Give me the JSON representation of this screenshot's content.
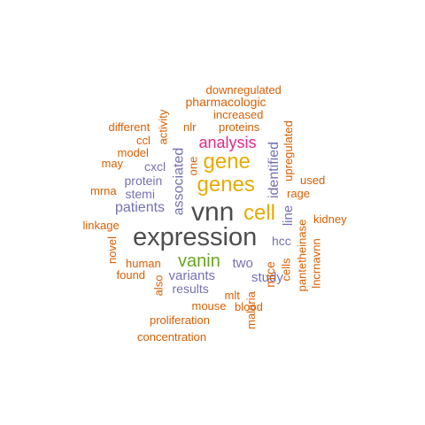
{
  "colors": {
    "orange": "#d95f02",
    "purple": "#7570b3",
    "magenta": "#e7298a",
    "green": "#66a61e",
    "gold": "#e6ab02",
    "dark": "#4d4d4d"
  },
  "words": [
    {
      "text": "expression",
      "color": "dark",
      "rotated": false
    },
    {
      "text": "vnn",
      "color": "dark",
      "rotated": false
    },
    {
      "text": "genes",
      "color": "gold",
      "rotated": false
    },
    {
      "text": "gene",
      "color": "gold",
      "rotated": false
    },
    {
      "text": "cell",
      "color": "gold",
      "rotated": false
    },
    {
      "text": "vanin",
      "color": "green",
      "rotated": false
    },
    {
      "text": "analysis",
      "color": "magenta",
      "rotated": false
    },
    {
      "text": "patients",
      "color": "purple",
      "rotated": false
    },
    {
      "text": "associated",
      "color": "purple",
      "rotated": true
    },
    {
      "text": "identified",
      "color": "purple",
      "rotated": true
    },
    {
      "text": "variants",
      "color": "purple",
      "rotated": false
    },
    {
      "text": "two",
      "color": "purple",
      "rotated": false
    },
    {
      "text": "study",
      "color": "purple",
      "rotated": false
    },
    {
      "text": "results",
      "color": "purple",
      "rotated": false
    },
    {
      "text": "protein",
      "color": "purple",
      "rotated": false
    },
    {
      "text": "stemi",
      "color": "purple",
      "rotated": false
    },
    {
      "text": "cxcl",
      "color": "purple",
      "rotated": false
    },
    {
      "text": "line",
      "color": "purple",
      "rotated": true
    },
    {
      "text": "hcc",
      "color": "purple",
      "rotated": false
    },
    {
      "text": "downregulated",
      "color": "orange",
      "rotated": false
    },
    {
      "text": "pharmacologic",
      "color": "orange",
      "rotated": false
    },
    {
      "text": "increased",
      "color": "orange",
      "rotated": false
    },
    {
      "text": "proteins",
      "color": "orange",
      "rotated": false
    },
    {
      "text": "different",
      "color": "orange",
      "rotated": false
    },
    {
      "text": "activity",
      "color": "orange",
      "rotated": true
    },
    {
      "text": "nlr",
      "color": "orange",
      "rotated": false
    },
    {
      "text": "ccl",
      "color": "orange",
      "rotated": false
    },
    {
      "text": "model",
      "color": "orange",
      "rotated": false
    },
    {
      "text": "may",
      "color": "orange",
      "rotated": false
    },
    {
      "text": "one",
      "color": "orange",
      "rotated": true
    },
    {
      "text": "upregulated",
      "color": "orange",
      "rotated": true
    },
    {
      "text": "used",
      "color": "orange",
      "rotated": false
    },
    {
      "text": "rage",
      "color": "orange",
      "rotated": false
    },
    {
      "text": "mrna",
      "color": "orange",
      "rotated": false
    },
    {
      "text": "kidney",
      "color": "orange",
      "rotated": false
    },
    {
      "text": "linkage",
      "color": "orange",
      "rotated": false
    },
    {
      "text": "novel",
      "color": "orange",
      "rotated": true
    },
    {
      "text": "human",
      "color": "orange",
      "rotated": false
    },
    {
      "text": "found",
      "color": "orange",
      "rotated": false
    },
    {
      "text": "also",
      "color": "orange",
      "rotated": true
    },
    {
      "text": "mice",
      "color": "orange",
      "rotated": true
    },
    {
      "text": "cells",
      "color": "orange",
      "rotated": true
    },
    {
      "text": "pantetheinase",
      "color": "orange",
      "rotated": true
    },
    {
      "text": "lncrnavnn",
      "color": "orange",
      "rotated": true
    },
    {
      "text": "mlt",
      "color": "orange",
      "rotated": false
    },
    {
      "text": "malaria",
      "color": "orange",
      "rotated": true
    },
    {
      "text": "mouse",
      "color": "orange",
      "rotated": false
    },
    {
      "text": "blood",
      "color": "orange",
      "rotated": false
    },
    {
      "text": "proliferation",
      "color": "orange",
      "rotated": false
    },
    {
      "text": "concentration",
      "color": "orange",
      "rotated": false
    }
  ]
}
